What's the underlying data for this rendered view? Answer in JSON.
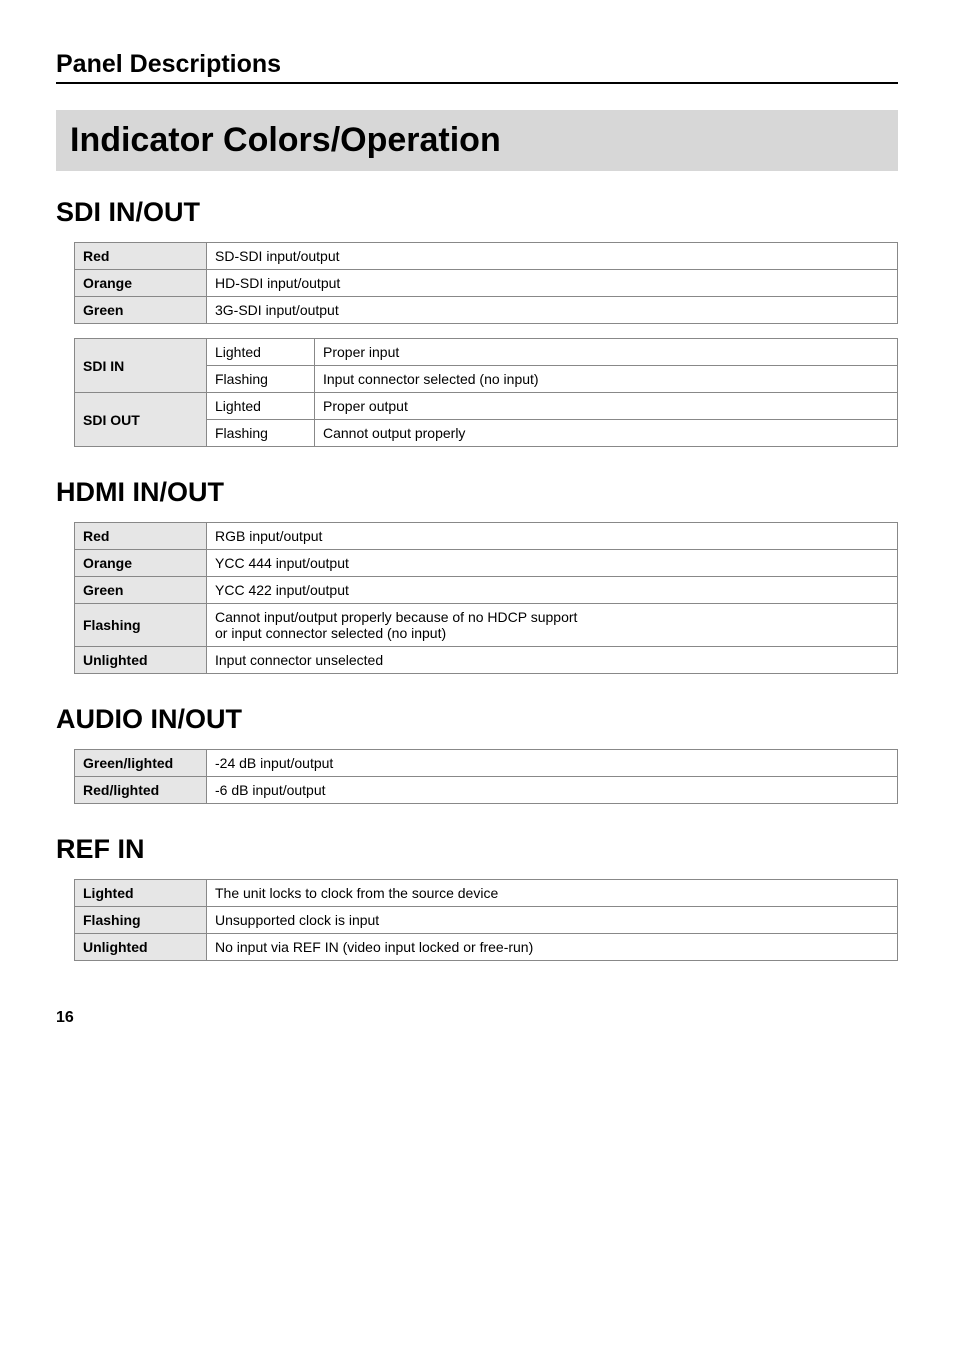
{
  "page": {
    "topHeading": "Panel Descriptions",
    "banner": "Indicator Colors/Operation",
    "pageNumber": "16"
  },
  "sdi": {
    "heading": "SDI IN/OUT",
    "colorTable": [
      {
        "key": "Red",
        "val": "SD-SDI input/output"
      },
      {
        "key": "Orange",
        "val": "HD-SDI input/output"
      },
      {
        "key": "Green",
        "val": "3G-SDI input/output"
      }
    ],
    "stateTable": [
      {
        "group": "SDI IN",
        "rows": [
          {
            "state": "Lighted",
            "val": "Proper input"
          },
          {
            "state": "Flashing",
            "val": "Input connector selected (no input)"
          }
        ]
      },
      {
        "group": "SDI OUT",
        "rows": [
          {
            "state": "Lighted",
            "val": "Proper output"
          },
          {
            "state": "Flashing",
            "val": "Cannot output properly"
          }
        ]
      }
    ]
  },
  "hdmi": {
    "heading": "HDMI IN/OUT",
    "rows": [
      {
        "key": "Red",
        "val": "RGB input/output"
      },
      {
        "key": "Orange",
        "val": "YCC 444 input/output"
      },
      {
        "key": "Green",
        "val": "YCC 422 input/output"
      },
      {
        "key": "Flashing",
        "val": "Cannot input/output properly because of no HDCP support\nor input connector selected (no input)"
      },
      {
        "key": "Unlighted",
        "val": "Input connector unselected"
      }
    ]
  },
  "audio": {
    "heading": "AUDIO IN/OUT",
    "rows": [
      {
        "key": "Green/lighted",
        "val": "-24 dB input/output"
      },
      {
        "key": "Red/lighted",
        "val": "-6 dB input/output"
      }
    ]
  },
  "ref": {
    "heading": "REF IN",
    "rows": [
      {
        "key": "Lighted",
        "val": "The unit locks to clock from the source device"
      },
      {
        "key": "Flashing",
        "val": "Unsupported clock is input"
      },
      {
        "key": "Unlighted",
        "val": "No input via REF IN (video input locked or free-run)"
      }
    ]
  }
}
